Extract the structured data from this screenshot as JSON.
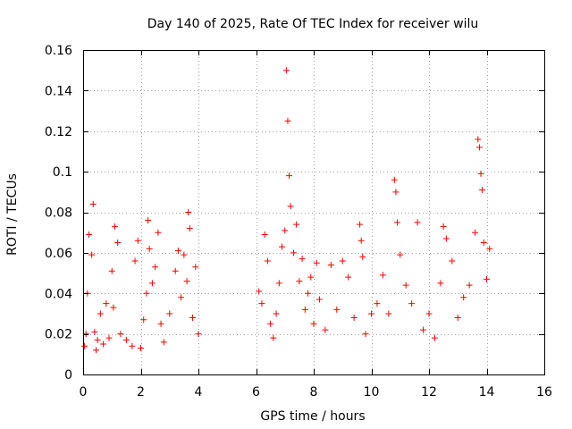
{
  "chart_data": {
    "type": "scatter",
    "title": "Day 140 of 2025, Rate Of TEC Index for receiver wilu",
    "xlabel": "GPS time / hours",
    "ylabel": "ROTI / TECUs",
    "xlim": [
      0,
      16
    ],
    "ylim": [
      0,
      0.16
    ],
    "xticks": [
      0,
      2,
      4,
      6,
      8,
      10,
      12,
      14,
      16
    ],
    "yticks": [
      0,
      0.02,
      0.04,
      0.06,
      0.08,
      0.1,
      0.12,
      0.14,
      0.16
    ],
    "xtick_labels": [
      "0",
      "2",
      "4",
      "6",
      "8",
      "10",
      "12",
      "14",
      "16"
    ],
    "ytick_labels": [
      "0",
      "0.02",
      "0.04",
      "0.06",
      "0.08",
      "0.1",
      "0.12",
      "0.14",
      "0.16"
    ],
    "grid": true,
    "marker": "+",
    "series_color": "#ff0000",
    "series": [
      {
        "name": "ROTI",
        "x": [
          0.05,
          0.1,
          0.15,
          0.2,
          0.3,
          0.35,
          0.4,
          0.45,
          0.5,
          0.6,
          0.7,
          0.8,
          0.9,
          1.0,
          1.05,
          1.1,
          1.2,
          1.3,
          1.5,
          1.7,
          1.8,
          1.9,
          2.0,
          2.1,
          2.2,
          2.25,
          2.3,
          2.4,
          2.5,
          2.6,
          2.7,
          2.8,
          3.0,
          3.2,
          3.3,
          3.4,
          3.5,
          3.6,
          3.65,
          3.7,
          3.8,
          3.9,
          4.0,
          6.1,
          6.2,
          6.3,
          6.4,
          6.5,
          6.6,
          6.7,
          6.8,
          6.9,
          7.0,
          7.05,
          7.1,
          7.15,
          7.2,
          7.3,
          7.4,
          7.5,
          7.6,
          7.7,
          7.8,
          7.9,
          8.0,
          8.1,
          8.2,
          8.4,
          8.6,
          8.8,
          9.0,
          9.2,
          9.4,
          9.6,
          9.65,
          9.7,
          9.8,
          10.0,
          10.2,
          10.4,
          10.6,
          10.8,
          10.85,
          10.9,
          11.0,
          11.2,
          11.4,
          11.6,
          11.8,
          12.0,
          12.2,
          12.4,
          12.5,
          12.6,
          12.8,
          13.0,
          13.2,
          13.4,
          13.6,
          13.7,
          13.75,
          13.8,
          13.85,
          13.9,
          14.0,
          14.1
        ],
        "y": [
          0.014,
          0.02,
          0.04,
          0.069,
          0.059,
          0.084,
          0.021,
          0.012,
          0.017,
          0.03,
          0.015,
          0.035,
          0.018,
          0.051,
          0.033,
          0.073,
          0.065,
          0.02,
          0.017,
          0.014,
          0.056,
          0.066,
          0.013,
          0.027,
          0.04,
          0.076,
          0.062,
          0.045,
          0.053,
          0.07,
          0.025,
          0.016,
          0.03,
          0.051,
          0.061,
          0.038,
          0.059,
          0.046,
          0.08,
          0.072,
          0.028,
          0.053,
          0.02,
          0.041,
          0.035,
          0.069,
          0.056,
          0.025,
          0.018,
          0.03,
          0.045,
          0.063,
          0.071,
          0.15,
          0.125,
          0.098,
          0.083,
          0.06,
          0.074,
          0.046,
          0.057,
          0.032,
          0.04,
          0.048,
          0.025,
          0.055,
          0.037,
          0.022,
          0.054,
          0.032,
          0.056,
          0.048,
          0.028,
          0.074,
          0.066,
          0.058,
          0.02,
          0.03,
          0.035,
          0.049,
          0.03,
          0.096,
          0.09,
          0.075,
          0.059,
          0.044,
          0.035,
          0.075,
          0.022,
          0.03,
          0.018,
          0.045,
          0.073,
          0.067,
          0.056,
          0.028,
          0.038,
          0.044,
          0.07,
          0.116,
          0.112,
          0.099,
          0.091,
          0.065,
          0.047,
          0.062
        ]
      }
    ]
  }
}
